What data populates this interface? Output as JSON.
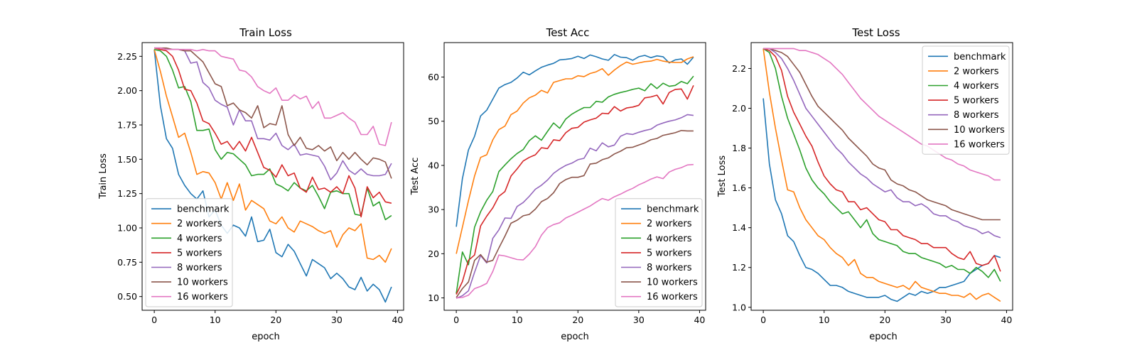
{
  "figure": {
    "background": "#ffffff"
  },
  "series_styles": [
    {
      "name": "benchmark",
      "color": "#1f77b4"
    },
    {
      "name": "2 workers",
      "color": "#ff7f0e"
    },
    {
      "name": "4 workers",
      "color": "#2ca02c"
    },
    {
      "name": "5 workers",
      "color": "#d62728"
    },
    {
      "name": "8 workers",
      "color": "#9467bd"
    },
    {
      "name": "10 workers",
      "color": "#8c564b"
    },
    {
      "name": "16 workers",
      "color": "#e377c2"
    }
  ],
  "chart_data": [
    {
      "type": "line",
      "title": "Train Loss",
      "xlabel": "epoch",
      "ylabel": "Train Loss",
      "xlim": [
        -2,
        41
      ],
      "ylim": [
        0.4,
        2.35
      ],
      "xticks": [
        0,
        10,
        20,
        30,
        40
      ],
      "yticks": [
        0.5,
        0.75,
        1.0,
        1.25,
        1.5,
        1.75,
        2.0,
        2.25
      ],
      "ytick_labels": [
        "0.50",
        "0.75",
        "1.00",
        "1.25",
        "1.50",
        "1.75",
        "2.00",
        "2.25"
      ],
      "legend_position": "lower-left",
      "grid": false,
      "series": [
        {
          "name": "benchmark",
          "values": [
            2.3,
            1.89,
            1.65,
            1.58,
            1.39,
            1.31,
            1.25,
            1.21,
            1.27,
            1.08,
            1.13,
            1.02,
            0.96,
            1.02,
            1.0,
            0.94,
            1.08,
            0.9,
            0.91,
            0.99,
            0.82,
            0.79,
            0.88,
            0.83,
            0.74,
            0.65,
            0.77,
            0.74,
            0.71,
            0.63,
            0.67,
            0.63,
            0.57,
            0.55,
            0.64,
            0.54,
            0.59,
            0.55,
            0.46,
            0.57
          ]
        },
        {
          "name": "2 workers",
          "values": [
            2.3,
            2.14,
            1.96,
            1.81,
            1.66,
            1.69,
            1.55,
            1.39,
            1.41,
            1.4,
            1.33,
            1.21,
            1.33,
            1.2,
            1.32,
            1.13,
            1.2,
            1.17,
            1.14,
            1.05,
            1.03,
            1.08,
            1.0,
            0.97,
            1.05,
            1.03,
            1.01,
            0.98,
            0.96,
            0.98,
            0.86,
            0.95,
            1.0,
            0.98,
            1.03,
            0.78,
            0.77,
            0.8,
            0.75,
            0.85
          ]
        },
        {
          "name": "4 workers",
          "values": [
            2.3,
            2.29,
            2.25,
            2.15,
            2.02,
            2.03,
            1.92,
            1.71,
            1.71,
            1.72,
            1.57,
            1.5,
            1.55,
            1.54,
            1.5,
            1.46,
            1.38,
            1.39,
            1.39,
            1.43,
            1.32,
            1.3,
            1.27,
            1.33,
            1.29,
            1.27,
            1.31,
            1.23,
            1.14,
            1.26,
            1.27,
            1.25,
            1.25,
            1.1,
            1.09,
            1.29,
            1.16,
            1.19,
            1.06,
            1.09
          ]
        },
        {
          "name": "5 workers",
          "values": [
            2.31,
            2.3,
            2.29,
            2.25,
            2.15,
            2.01,
            2.0,
            1.91,
            1.78,
            1.76,
            1.69,
            1.61,
            1.63,
            1.57,
            1.63,
            1.56,
            1.66,
            1.55,
            1.44,
            1.42,
            1.37,
            1.46,
            1.38,
            1.4,
            1.29,
            1.26,
            1.37,
            1.28,
            1.29,
            1.26,
            1.3,
            1.25,
            1.38,
            1.29,
            1.08,
            1.3,
            1.22,
            1.26,
            1.19,
            1.18
          ]
        },
        {
          "name": "8 workers",
          "values": [
            2.31,
            2.31,
            2.3,
            2.3,
            2.3,
            2.29,
            2.2,
            2.21,
            2.06,
            2.02,
            1.93,
            1.9,
            1.88,
            1.75,
            1.86,
            1.78,
            1.78,
            1.65,
            1.65,
            1.64,
            1.69,
            1.6,
            1.57,
            1.61,
            1.53,
            1.54,
            1.53,
            1.52,
            1.45,
            1.35,
            1.4,
            1.49,
            1.42,
            1.39,
            1.43,
            1.39,
            1.38,
            1.38,
            1.39,
            1.47
          ]
        },
        {
          "name": "10 workers",
          "values": [
            2.31,
            2.31,
            2.31,
            2.3,
            2.3,
            2.29,
            2.29,
            2.25,
            2.21,
            2.13,
            2.05,
            2.03,
            1.89,
            1.91,
            1.86,
            1.84,
            1.8,
            1.89,
            1.73,
            1.76,
            1.75,
            1.89,
            1.68,
            1.6,
            1.66,
            1.58,
            1.57,
            1.6,
            1.56,
            1.59,
            1.49,
            1.55,
            1.5,
            1.55,
            1.5,
            1.46,
            1.51,
            1.5,
            1.48,
            1.36
          ]
        },
        {
          "name": "16 workers",
          "values": [
            2.31,
            2.31,
            2.3,
            2.3,
            2.3,
            2.3,
            2.3,
            2.29,
            2.3,
            2.29,
            2.29,
            2.25,
            2.24,
            2.23,
            2.15,
            2.14,
            2.1,
            2.03,
            2.0,
            1.98,
            2.02,
            1.93,
            1.93,
            1.97,
            1.94,
            1.96,
            1.87,
            1.92,
            1.8,
            1.8,
            1.82,
            1.84,
            1.8,
            1.77,
            1.68,
            1.68,
            1.74,
            1.61,
            1.6,
            1.77
          ]
        }
      ]
    },
    {
      "type": "line",
      "title": "Test Acc",
      "xlabel": "epoch",
      "ylabel": "Test Acc",
      "xlim": [
        -2,
        41
      ],
      "ylim": [
        7.2,
        67.8
      ],
      "xticks": [
        0,
        10,
        20,
        30,
        40
      ],
      "yticks": [
        10,
        20,
        30,
        40,
        50,
        60
      ],
      "ytick_labels": [
        "10",
        "20",
        "30",
        "40",
        "50",
        "60"
      ],
      "legend_position": "lower-right",
      "grid": false,
      "series": [
        {
          "name": "benchmark",
          "values": [
            26.1,
            37.0,
            43.5,
            46.6,
            51.2,
            52.5,
            55.0,
            57.5,
            58.3,
            58.8,
            59.8,
            61.1,
            60.5,
            61.4,
            62.2,
            62.7,
            63.1,
            63.9,
            64.0,
            64.2,
            64.7,
            64.2,
            65.0,
            64.6,
            64.1,
            63.8,
            65.1,
            64.5,
            64.4,
            63.8,
            64.6,
            64.9,
            64.4,
            64.8,
            64.6,
            63.2,
            63.9,
            64.1,
            62.9,
            64.5
          ]
        },
        {
          "name": "2 workers",
          "values": [
            20.0,
            26.0,
            32.0,
            37.6,
            41.8,
            42.4,
            45.8,
            48.1,
            48.9,
            51.5,
            52.3,
            54.1,
            55.3,
            55.9,
            57.0,
            56.4,
            58.8,
            59.2,
            59.6,
            59.6,
            60.3,
            60.1,
            60.8,
            61.2,
            61.9,
            60.4,
            61.6,
            62.6,
            63.4,
            62.9,
            63.2,
            63.5,
            63.6,
            64.0,
            63.6,
            63.4,
            63.3,
            63.3,
            64.1,
            64.6
          ]
        },
        {
          "name": "4 workers",
          "values": [
            11.0,
            20.4,
            17.5,
            26.0,
            29.5,
            32.1,
            34.1,
            38.6,
            40.1,
            41.5,
            42.7,
            43.6,
            45.6,
            46.7,
            45.7,
            47.7,
            49.6,
            48.4,
            50.5,
            51.6,
            52.4,
            53.1,
            53.1,
            54.5,
            54.3,
            55.5,
            56.1,
            56.5,
            56.8,
            57.2,
            57.5,
            56.9,
            58.5,
            57.4,
            58.6,
            57.9,
            58.1,
            59.0,
            58.5,
            60.2
          ]
        },
        {
          "name": "5 workers",
          "values": [
            10.8,
            13.7,
            18.5,
            19.7,
            26.3,
            28.5,
            30.4,
            33.0,
            34.1,
            37.6,
            39.2,
            41.0,
            41.8,
            42.4,
            44.0,
            43.8,
            45.8,
            45.6,
            47.4,
            48.4,
            48.6,
            49.8,
            50.3,
            50.7,
            51.8,
            51.7,
            53.3,
            52.3,
            53.0,
            53.2,
            53.6,
            55.3,
            55.5,
            55.9,
            53.9,
            56.5,
            57.2,
            57.3,
            55.0,
            58.1
          ]
        },
        {
          "name": "8 workers",
          "values": [
            9.9,
            10.5,
            11.6,
            15.8,
            19.6,
            17.9,
            23.5,
            25.4,
            28.1,
            28.0,
            30.7,
            31.6,
            33.0,
            34.6,
            35.5,
            36.7,
            38.2,
            39.2,
            40.0,
            40.5,
            41.3,
            41.6,
            43.9,
            43.3,
            45.1,
            44.2,
            44.6,
            46.6,
            47.2,
            47.0,
            47.5,
            47.9,
            48.2,
            49.1,
            49.6,
            50.0,
            50.3,
            50.8,
            51.5,
            51.3
          ]
        },
        {
          "name": "10 workers",
          "values": [
            10.1,
            12.1,
            13.6,
            18.5,
            19.8,
            18.1,
            18.5,
            21.3,
            24.0,
            26.9,
            27.6,
            28.6,
            28.9,
            30.1,
            31.8,
            32.5,
            33.8,
            35.9,
            36.8,
            37.3,
            37.3,
            37.7,
            40.3,
            40.5,
            41.3,
            41.7,
            42.6,
            43.2,
            44.0,
            44.1,
            44.6,
            45.1,
            45.8,
            46.1,
            46.8,
            47.1,
            47.4,
            47.9,
            47.8,
            47.8
          ]
        },
        {
          "name": "16 workers",
          "values": [
            10.0,
            10.1,
            10.6,
            12.1,
            12.6,
            13.3,
            16.0,
            19.7,
            19.5,
            19.1,
            18.7,
            18.6,
            19.9,
            21.6,
            24.2,
            25.9,
            26.6,
            27.0,
            28.1,
            28.7,
            29.4,
            30.1,
            30.8,
            31.7,
            32.5,
            32.1,
            32.9,
            33.5,
            34.2,
            34.8,
            35.6,
            36.2,
            36.9,
            37.4,
            37.0,
            38.5,
            39.1,
            39.5,
            40.1,
            40.2
          ]
        }
      ]
    },
    {
      "type": "line",
      "title": "Test Loss",
      "xlabel": "epoch",
      "ylabel": "Test Loss",
      "xlim": [
        -2,
        41
      ],
      "ylim": [
        0.985,
        2.33
      ],
      "xticks": [
        0,
        10,
        20,
        30,
        40
      ],
      "yticks": [
        1.0,
        1.2,
        1.4,
        1.6,
        1.8,
        2.0,
        2.2
      ],
      "ytick_labels": [
        "1.0",
        "1.2",
        "1.4",
        "1.6",
        "1.8",
        "2.0",
        "2.2"
      ],
      "legend_position": "upper-right",
      "grid": false,
      "series": [
        {
          "name": "benchmark",
          "values": [
            2.05,
            1.72,
            1.54,
            1.47,
            1.36,
            1.33,
            1.26,
            1.2,
            1.19,
            1.17,
            1.14,
            1.11,
            1.11,
            1.1,
            1.08,
            1.07,
            1.06,
            1.05,
            1.05,
            1.05,
            1.06,
            1.04,
            1.03,
            1.05,
            1.07,
            1.06,
            1.08,
            1.07,
            1.08,
            1.1,
            1.1,
            1.11,
            1.12,
            1.13,
            1.17,
            1.19,
            1.21,
            1.22,
            1.26,
            1.25
          ]
        },
        {
          "name": "2 workers",
          "values": [
            2.3,
            2.08,
            1.9,
            1.74,
            1.59,
            1.58,
            1.5,
            1.44,
            1.4,
            1.36,
            1.34,
            1.3,
            1.27,
            1.25,
            1.21,
            1.24,
            1.17,
            1.15,
            1.15,
            1.13,
            1.12,
            1.11,
            1.1,
            1.11,
            1.09,
            1.13,
            1.1,
            1.09,
            1.08,
            1.07,
            1.07,
            1.06,
            1.06,
            1.05,
            1.07,
            1.04,
            1.06,
            1.07,
            1.05,
            1.03
          ]
        },
        {
          "name": "4 workers",
          "values": [
            2.3,
            2.28,
            2.2,
            2.06,
            1.95,
            1.87,
            1.79,
            1.7,
            1.64,
            1.6,
            1.57,
            1.53,
            1.5,
            1.47,
            1.48,
            1.44,
            1.4,
            1.44,
            1.37,
            1.34,
            1.33,
            1.32,
            1.31,
            1.28,
            1.27,
            1.27,
            1.25,
            1.24,
            1.23,
            1.22,
            1.2,
            1.21,
            1.19,
            1.19,
            1.17,
            1.2,
            1.18,
            1.15,
            1.19,
            1.13
          ]
        },
        {
          "name": "5 workers",
          "values": [
            2.3,
            2.29,
            2.26,
            2.19,
            2.06,
            1.98,
            1.92,
            1.86,
            1.81,
            1.73,
            1.66,
            1.62,
            1.59,
            1.58,
            1.53,
            1.53,
            1.49,
            1.5,
            1.47,
            1.44,
            1.43,
            1.39,
            1.39,
            1.36,
            1.35,
            1.34,
            1.32,
            1.32,
            1.3,
            1.3,
            1.3,
            1.27,
            1.25,
            1.24,
            1.28,
            1.22,
            1.21,
            1.22,
            1.26,
            1.18
          ]
        },
        {
          "name": "8 workers",
          "values": [
            2.3,
            2.3,
            2.28,
            2.25,
            2.2,
            2.14,
            2.07,
            2.0,
            1.96,
            1.92,
            1.88,
            1.84,
            1.8,
            1.77,
            1.73,
            1.7,
            1.67,
            1.65,
            1.62,
            1.6,
            1.58,
            1.59,
            1.55,
            1.53,
            1.53,
            1.51,
            1.52,
            1.5,
            1.47,
            1.46,
            1.46,
            1.44,
            1.43,
            1.41,
            1.4,
            1.39,
            1.37,
            1.38,
            1.36,
            1.35
          ]
        },
        {
          "name": "10 workers",
          "values": [
            2.3,
            2.3,
            2.29,
            2.28,
            2.26,
            2.22,
            2.18,
            2.12,
            2.06,
            2.01,
            1.98,
            1.95,
            1.92,
            1.89,
            1.85,
            1.82,
            1.79,
            1.76,
            1.72,
            1.7,
            1.69,
            1.64,
            1.62,
            1.61,
            1.59,
            1.58,
            1.56,
            1.54,
            1.53,
            1.52,
            1.51,
            1.49,
            1.48,
            1.47,
            1.46,
            1.45,
            1.44,
            1.44,
            1.44,
            1.44
          ]
        },
        {
          "name": "16 workers",
          "values": [
            2.3,
            2.3,
            2.3,
            2.3,
            2.3,
            2.3,
            2.29,
            2.29,
            2.28,
            2.27,
            2.25,
            2.23,
            2.2,
            2.17,
            2.13,
            2.09,
            2.05,
            2.02,
            1.99,
            1.96,
            1.94,
            1.92,
            1.9,
            1.88,
            1.86,
            1.84,
            1.82,
            1.81,
            1.79,
            1.77,
            1.75,
            1.74,
            1.72,
            1.71,
            1.69,
            1.68,
            1.67,
            1.66,
            1.64,
            1.64
          ]
        }
      ]
    }
  ]
}
